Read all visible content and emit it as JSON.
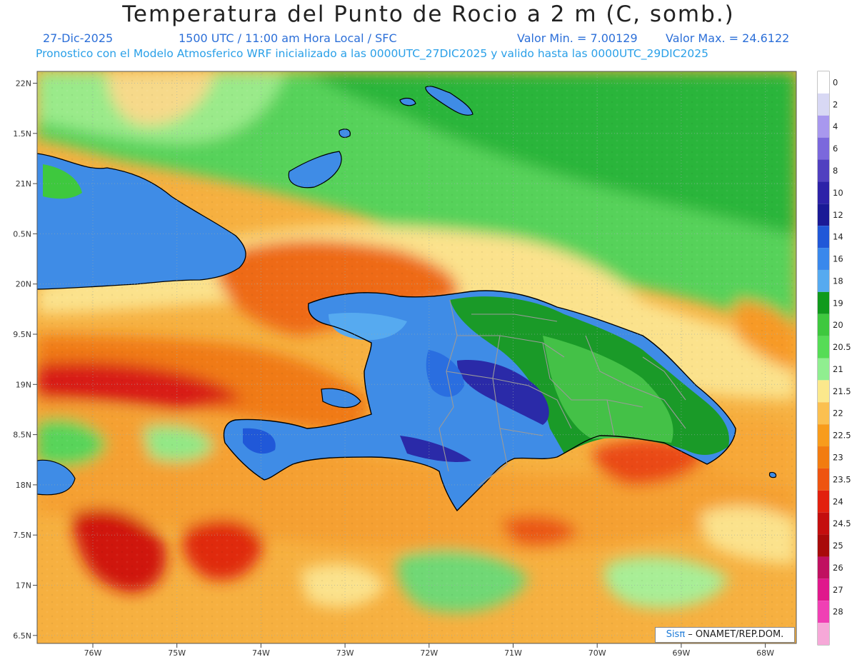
{
  "title": "Temperatura del Punto de Rocio a 2 m (C, somb.)",
  "date": "27-Dic-2025",
  "time": "1500 UTC / 11:00 am Hora Local / SFC",
  "vmin": "Valor Min. = 7.00129",
  "vmax": "Valor Max. = 24.6122",
  "model_info": "Pronostico con el Modelo Atmosferico WRF inicializado a las 0000UTC_27DIC2025 y valido hasta las  0000UTC_29DIC2025",
  "credit": {
    "brand": "Sisπ",
    "text": " – ONAMET/REP.DOM."
  },
  "lat_labels": [
    "22N",
    "1.5N",
    "21N",
    "0.5N",
    "20N",
    "9.5N",
    "19N",
    "8.5N",
    "18N",
    "7.5N",
    "17N",
    "6.5N"
  ],
  "lon_labels": [
    "76W",
    "75W",
    "74W",
    "73W",
    "72W",
    "71W",
    "70W",
    "69W",
    "68W"
  ],
  "colorbar": [
    {
      "label": "0",
      "color": "#ffffff"
    },
    {
      "label": "2",
      "color": "#d8d8f4"
    },
    {
      "label": "4",
      "color": "#a898ee"
    },
    {
      "label": "6",
      "color": "#7b68dc"
    },
    {
      "label": "8",
      "color": "#5040c0"
    },
    {
      "label": "10",
      "color": "#2d22a8"
    },
    {
      "label": "12",
      "color": "#1a1a96"
    },
    {
      "label": "14",
      "color": "#2058d8"
    },
    {
      "label": "16",
      "color": "#3a88ec"
    },
    {
      "label": "18",
      "color": "#56aaf0"
    },
    {
      "label": "19",
      "color": "#109a1c"
    },
    {
      "label": "20",
      "color": "#3ec83e"
    },
    {
      "label": "20.5",
      "color": "#56dc56"
    },
    {
      "label": "21",
      "color": "#90ee90"
    },
    {
      "label": "21.5",
      "color": "#fbe88c"
    },
    {
      "label": "22",
      "color": "#fbc050"
    },
    {
      "label": "22.5",
      "color": "#f89c1c"
    },
    {
      "label": "23",
      "color": "#f27c10"
    },
    {
      "label": "23.5",
      "color": "#ee5410"
    },
    {
      "label": "24",
      "color": "#e2200e"
    },
    {
      "label": "24.5",
      "color": "#c40e0e"
    },
    {
      "label": "25",
      "color": "#a80a0a"
    },
    {
      "label": "26",
      "color": "#c01060"
    },
    {
      "label": "27",
      "color": "#e0188c"
    },
    {
      "label": "28",
      "color": "#f040b4"
    },
    {
      "label": "",
      "color": "#f6a8d8"
    }
  ]
}
